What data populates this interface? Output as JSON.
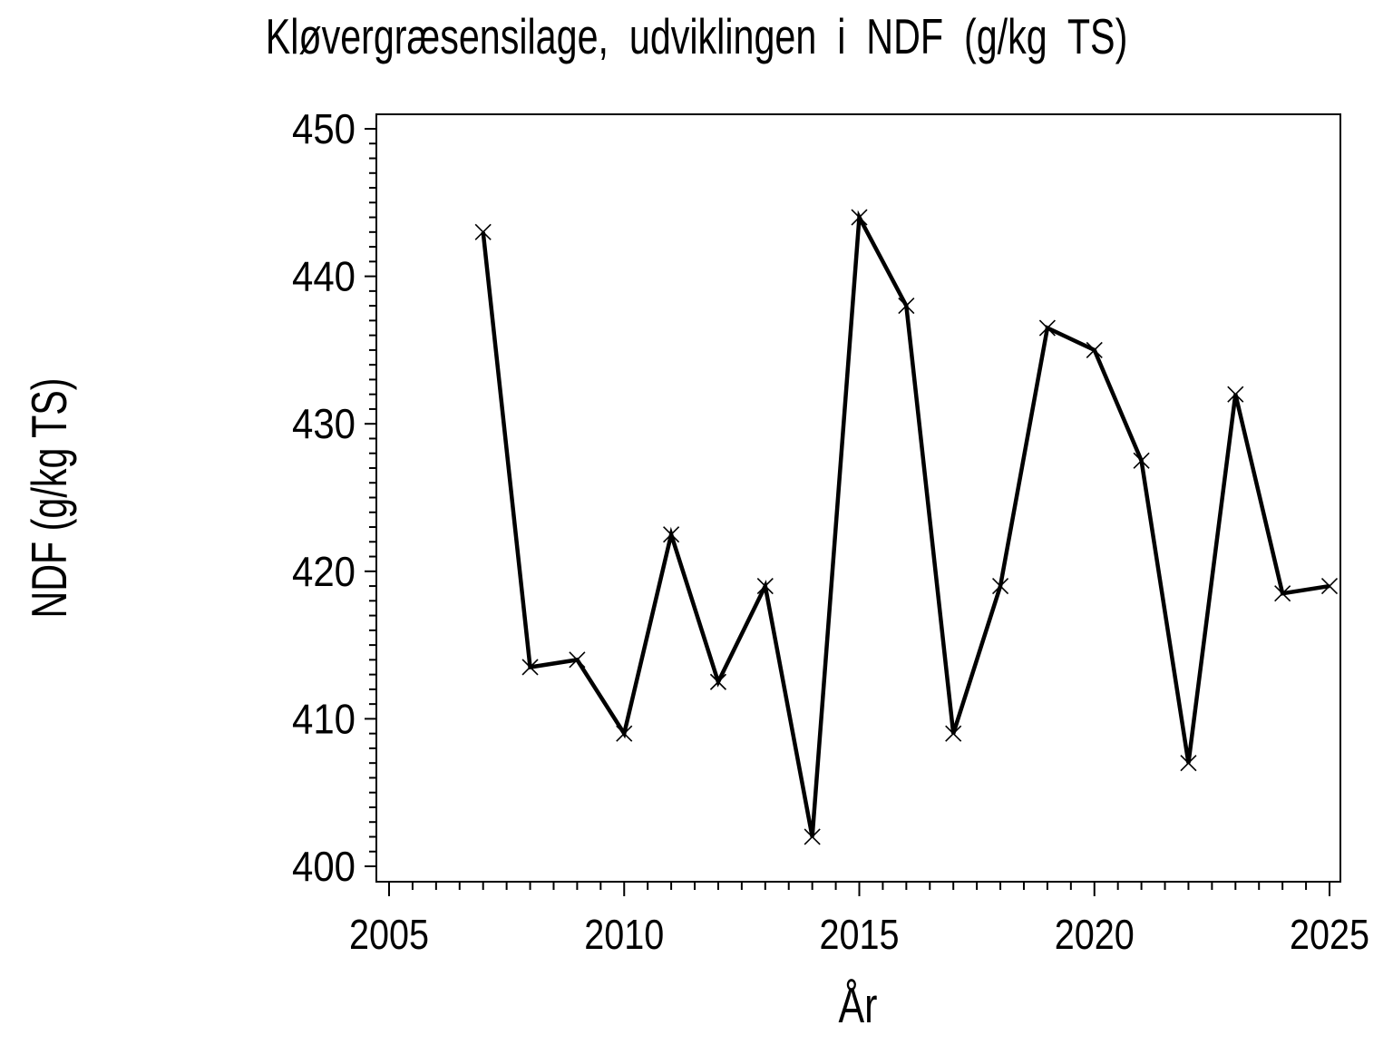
{
  "chart_data": {
    "type": "line",
    "title": "Kløvergræsensilage,  udviklingen  i  NDF  (g/kg  TS)",
    "xlabel": "År",
    "ylabel": "NDF (g/kg TS)",
    "x": [
      2007,
      2008,
      2009,
      2010,
      2011,
      2012,
      2013,
      2014,
      2015,
      2016,
      2017,
      2018,
      2019,
      2020,
      2021,
      2022,
      2023,
      2024,
      2025
    ],
    "y": [
      443,
      413.5,
      414,
      409,
      422.5,
      412.5,
      419,
      402,
      444,
      438,
      409,
      419,
      436.5,
      435,
      427.5,
      407,
      432,
      418.5,
      419
    ],
    "xlim": [
      2005,
      2025
    ],
    "ylim": [
      400,
      450
    ],
    "x_major_ticks": [
      2005,
      2010,
      2015,
      2020,
      2025
    ],
    "y_major_ticks": [
      400,
      410,
      420,
      430,
      440,
      450
    ],
    "x_minor_step": 0.5,
    "y_minor_step": 1,
    "grid": false,
    "legend": "none",
    "marker": "x",
    "line_color": "#000000",
    "axis_color": "#000000",
    "background_color": "#ffffff"
  }
}
